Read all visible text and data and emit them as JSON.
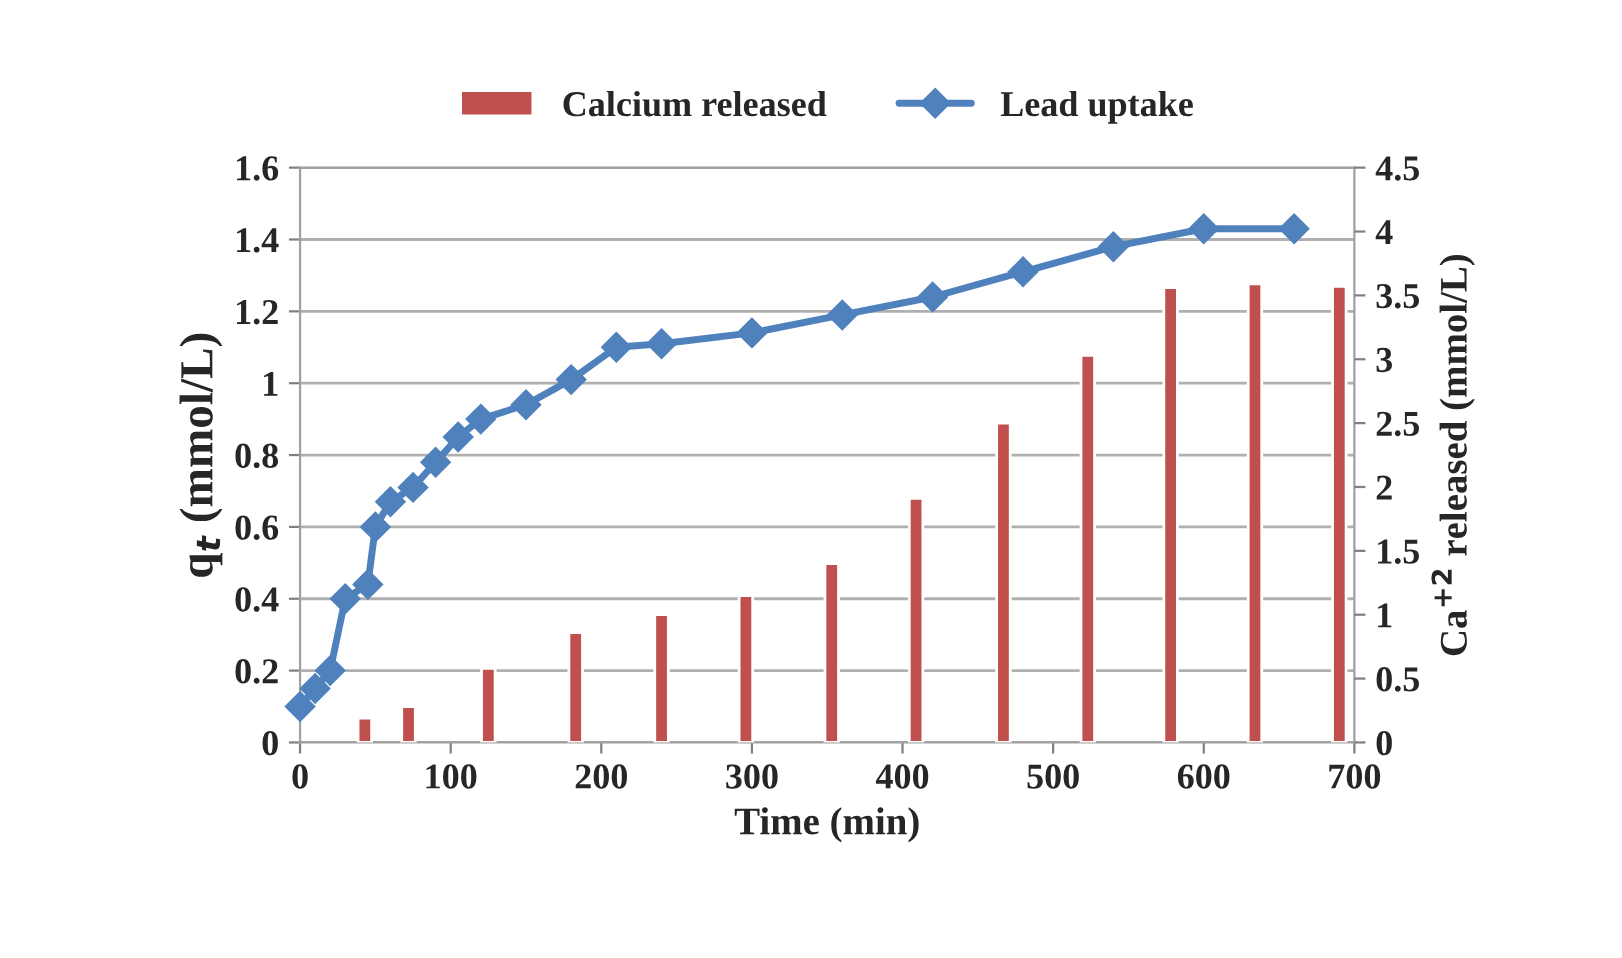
{
  "chart_data": {
    "type": "line",
    "xlabel": "Time (min)",
    "ylabel": "q$_{t}$ (mmol/L)",
    "y2label": "Ca$^{+2}$ released (mmol/L)",
    "xlim": [
      0,
      700
    ],
    "xticks": [
      0,
      100,
      200,
      300,
      400,
      500,
      600,
      700
    ],
    "ylim": [
      0,
      1.6
    ],
    "yticks": [
      0,
      0.2,
      0.4,
      0.6,
      0.8,
      1,
      1.2,
      1.4,
      1.6
    ],
    "y2lim": [
      0,
      4.5
    ],
    "y2ticks": [
      0,
      0.5,
      1,
      1.5,
      2,
      2.5,
      3,
      3.5,
      4,
      4.5
    ],
    "grid": "y",
    "legend": "top",
    "series": [
      {
        "name": "Calcium released",
        "type": "bar",
        "axis": "y2",
        "color": "#c0504d",
        "x": [
          43,
          72,
          125,
          183,
          240,
          296,
          353,
          409,
          467,
          523,
          578,
          634,
          690
        ],
        "values": [
          0.19,
          0.28,
          0.58,
          0.86,
          1.0,
          1.15,
          1.4,
          1.91,
          2.5,
          3.03,
          3.56,
          3.59,
          3.57
        ]
      },
      {
        "name": "Lead uptake",
        "marker": "diamond",
        "color": "#4f81bd",
        "x": [
          0,
          10,
          20,
          30,
          45,
          50,
          60,
          75,
          90,
          105,
          120,
          150,
          180,
          210,
          240,
          300,
          360,
          420,
          480,
          540,
          600,
          660
        ],
        "values": [
          0.1,
          0.15,
          0.2,
          0.4,
          0.44,
          0.6,
          0.67,
          0.71,
          0.78,
          0.85,
          0.9,
          0.94,
          1.01,
          1.1,
          1.11,
          1.14,
          1.19,
          1.24,
          1.31,
          1.38,
          1.43,
          1.43
        ]
      }
    ]
  }
}
